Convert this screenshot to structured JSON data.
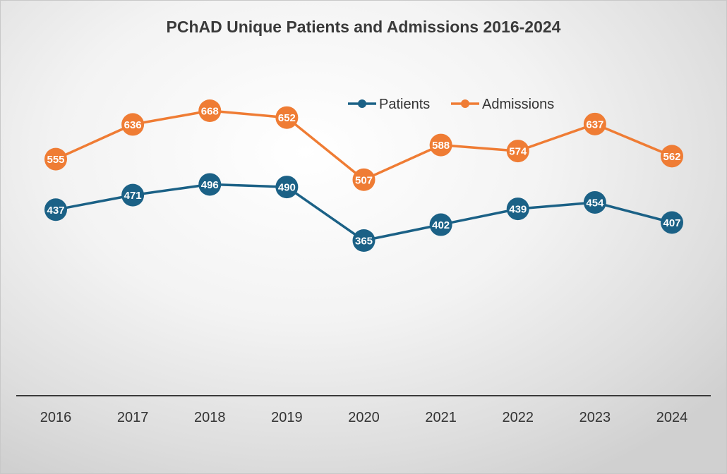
{
  "chart_data": {
    "type": "line",
    "title": "PChAD Unique Patients and Admissions 2016-2024",
    "xlabel": "",
    "ylabel": "",
    "categories": [
      "2016",
      "2017",
      "2018",
      "2019",
      "2020",
      "2021",
      "2022",
      "2023",
      "2024"
    ],
    "series": [
      {
        "name": "Patients",
        "color": "#1b6186",
        "values": [
          437,
          471,
          496,
          490,
          365,
          402,
          439,
          454,
          407
        ]
      },
      {
        "name": "Admissions",
        "color": "#ef7c34",
        "values": [
          555,
          636,
          668,
          652,
          507,
          588,
          574,
          637,
          562
        ]
      }
    ],
    "ylim": [
      0,
      700
    ],
    "y_axis_visible": false,
    "grid": false,
    "legend_position": "top-right",
    "data_labels": true
  }
}
